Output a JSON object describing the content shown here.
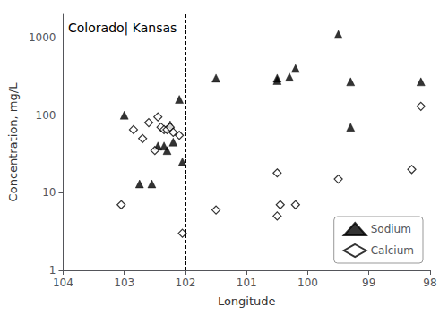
{
  "chart_data": {
    "type": "scatter",
    "xlabel": "Longitude",
    "ylabel": "Concentration, mg/L",
    "annotations": [
      "Colorado| Kansas"
    ],
    "reference_lines": [
      {
        "x": 102.0,
        "line_style": "dashed",
        "color": "black"
      }
    ],
    "series": [
      {
        "name": "Sodium",
        "color": "black",
        "marker": "triangle",
        "x": [
          103.0,
          102.75,
          102.55,
          102.45,
          102.35,
          102.3,
          102.25,
          102.2,
          102.1,
          102.05,
          101.5,
          100.5,
          100.5,
          100.3,
          100.2,
          99.5,
          99.3,
          99.3,
          98.15
        ],
        "values": [
          100,
          13,
          13,
          40,
          40,
          35,
          75,
          45,
          160,
          25,
          300,
          280,
          300,
          310,
          400,
          1100,
          270,
          70,
          270
        ]
      },
      {
        "name": "Calcium",
        "color": "black",
        "marker": "open_diamond",
        "x": [
          103.05,
          102.85,
          102.7,
          102.6,
          102.5,
          102.45,
          102.4,
          102.35,
          102.3,
          102.25,
          102.2,
          102.1,
          102.05,
          101.5,
          100.5,
          100.5,
          100.45,
          100.2,
          99.5,
          98.3,
          98.15
        ],
        "values": [
          7,
          65,
          50,
          80,
          35,
          95,
          70,
          65,
          65,
          70,
          60,
          55,
          3,
          6,
          18,
          5,
          7,
          7,
          15,
          20,
          130
        ]
      }
    ],
    "xlim": [
      104,
      98
    ],
    "xticks": [
      104,
      103,
      102,
      101,
      100,
      99,
      98
    ],
    "ylim": [
      1,
      2000
    ],
    "yticks": [
      1,
      10,
      100,
      1000
    ],
    "log": "y",
    "grid": false,
    "legend": "lower right"
  }
}
